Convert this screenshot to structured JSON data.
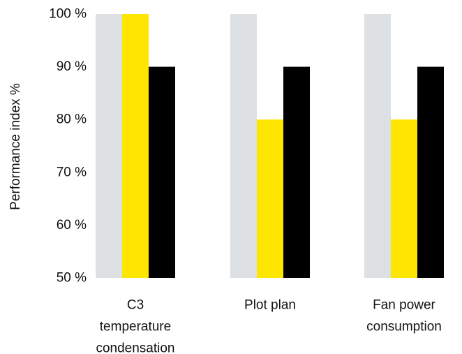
{
  "chart_data": {
    "type": "bar",
    "categories": [
      [
        "C3",
        "temperature",
        "condensation"
      ],
      [
        "Plot plan"
      ],
      [
        "Fan power",
        "consumption"
      ]
    ],
    "series": [
      {
        "values": [
          100,
          100,
          100
        ],
        "color": "#dde1e4"
      },
      {
        "values": [
          100,
          80,
          80
        ],
        "color": "#ffe600"
      },
      {
        "values": [
          90,
          90,
          90
        ],
        "color": "#000000"
      }
    ],
    "ylabel": "Performance index %",
    "ylim": [
      50,
      100
    ],
    "yticks": [
      {
        "value": 50,
        "label": "50 %"
      },
      {
        "value": 60,
        "label": "60 %"
      },
      {
        "value": 70,
        "label": "70 %"
      },
      {
        "value": 80,
        "label": "80 %"
      },
      {
        "value": 90,
        "label": "90 %"
      },
      {
        "value": 100,
        "label": "100 %"
      }
    ],
    "grid": false,
    "legend": "none"
  }
}
